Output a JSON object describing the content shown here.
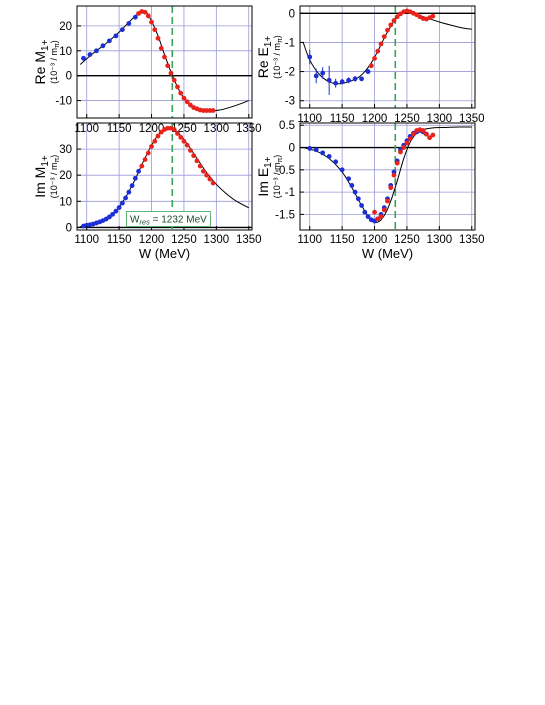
{
  "colors": {
    "blue": "#1c2ed6",
    "red": "#e8231b",
    "grid": "#9a9ad6",
    "dash": "#3aa35a",
    "curve": "#000000"
  },
  "chart_data": [
    {
      "id": "re_m1",
      "type": "scatter",
      "ylabel": "Re M",
      "ysub": "1+",
      "yunit": "(10⁻³ / m",
      "yunit_sub": "π",
      "yunit_close": ")",
      "xlabel": "",
      "xlim": [
        1085,
        1355
      ],
      "ylim": [
        -17,
        28
      ],
      "xticks": [
        1100,
        1150,
        1200,
        1250,
        1300,
        1350
      ],
      "yticks": [
        -10,
        0,
        10,
        20
      ],
      "zero_line": true,
      "vline": 1232,
      "series": [
        {
          "color": "blue",
          "x": [
            1095,
            1105,
            1115,
            1125,
            1135,
            1145,
            1155,
            1165,
            1175
          ],
          "y": [
            7,
            8.5,
            10,
            12,
            14,
            16,
            18.5,
            21,
            23.5
          ]
        },
        {
          "color": "red",
          "x": [
            1180,
            1185,
            1190,
            1195,
            1200,
            1205,
            1210,
            1215,
            1220,
            1225,
            1230,
            1235,
            1240,
            1245,
            1250,
            1255,
            1260,
            1265,
            1270,
            1275,
            1280,
            1285,
            1290,
            1295
          ],
          "y": [
            25,
            25.8,
            25.5,
            24,
            21.5,
            18.5,
            15,
            11,
            7.5,
            4,
            1,
            -1.8,
            -4.5,
            -7,
            -9,
            -10.5,
            -11.8,
            -12.8,
            -13.3,
            -13.8,
            -14,
            -14,
            -14,
            -14
          ]
        }
      ],
      "curve": {
        "x": [
          1090,
          1110,
          1130,
          1150,
          1165,
          1175,
          1185,
          1192,
          1200,
          1210,
          1220,
          1230,
          1240,
          1250,
          1262,
          1275,
          1290,
          1305,
          1320,
          1335,
          1350
        ],
        "y": [
          4.5,
          9,
          13,
          17.5,
          21.5,
          24,
          25.8,
          25.5,
          22,
          16,
          8.5,
          1.5,
          -4.5,
          -9,
          -12,
          -13.6,
          -14.2,
          -13.8,
          -12.8,
          -11.5,
          -10
        ]
      }
    },
    {
      "id": "re_e1",
      "type": "scatter",
      "ylabel": "Re E",
      "ysub": "1+",
      "yunit": "(10⁻³ / m",
      "yunit_sub": "π",
      "yunit_close": ")",
      "xlabel": "",
      "xlim": [
        1085,
        1355
      ],
      "ylim": [
        -3.25,
        0.25
      ],
      "xticks": [
        1100,
        1150,
        1200,
        1250,
        1300,
        1350
      ],
      "yticks": [
        -3,
        -2,
        -1,
        0
      ],
      "zero_line": true,
      "vline": 1232,
      "series": [
        {
          "color": "blue",
          "x": [
            1100,
            1110,
            1120,
            1130,
            1140,
            1150,
            1160,
            1170,
            1180,
            1190
          ],
          "y": [
            -1.5,
            -2.15,
            -2.05,
            -2.3,
            -2.4,
            -2.35,
            -2.3,
            -2.25,
            -2.25,
            -2.0
          ],
          "err": [
            0.25,
            0.25,
            0.2,
            0.5,
            0.15,
            0.1,
            0.1,
            0.1,
            0.08,
            0.08
          ]
        },
        {
          "color": "red",
          "x": [
            1195,
            1200,
            1205,
            1210,
            1215,
            1220,
            1225,
            1230,
            1235,
            1240,
            1245,
            1250,
            1255,
            1260,
            1265,
            1270,
            1275,
            1280,
            1285,
            1290
          ],
          "y": [
            -1.8,
            -1.55,
            -1.3,
            -1.05,
            -0.8,
            -0.58,
            -0.4,
            -0.25,
            -0.12,
            -0.02,
            0.05,
            0.08,
            0.05,
            0.0,
            -0.05,
            -0.12,
            -0.18,
            -0.2,
            -0.15,
            -0.1
          ]
        }
      ],
      "curve": {
        "x": [
          1090,
          1100,
          1115,
          1130,
          1145,
          1160,
          1175,
          1185,
          1195,
          1205,
          1215,
          1225,
          1235,
          1245,
          1255,
          1265,
          1280,
          1300,
          1320,
          1335,
          1350
        ],
        "y": [
          -1.0,
          -1.6,
          -2.1,
          -2.35,
          -2.42,
          -2.35,
          -2.2,
          -2.0,
          -1.7,
          -1.3,
          -0.85,
          -0.45,
          -0.12,
          0.05,
          0.05,
          -0.05,
          -0.15,
          -0.3,
          -0.42,
          -0.5,
          -0.55
        ]
      }
    },
    {
      "id": "im_m1",
      "type": "scatter",
      "ylabel": "Im M",
      "ysub": "1+",
      "yunit": "(10⁻³ / m",
      "yunit_sub": "π",
      "yunit_close": ")",
      "xlabel": "W (MeV)",
      "xlim": [
        1085,
        1355
      ],
      "ylim": [
        -1,
        40
      ],
      "xticks": [
        1100,
        1150,
        1200,
        1250,
        1300,
        1350
      ],
      "yticks": [
        0,
        10,
        20,
        30
      ],
      "zero_line": true,
      "vline": 1232,
      "annotation": {
        "prefix": "W",
        "sub": "res",
        "suffix": " = 1232 MeV"
      },
      "series": [
        {
          "color": "blue",
          "x": [
            1095,
            1100,
            1105,
            1110,
            1115,
            1120,
            1125,
            1130,
            1135,
            1140,
            1145,
            1150,
            1155,
            1160,
            1165,
            1170,
            1175,
            1180
          ],
          "y": [
            0.5,
            0.8,
            1,
            1.3,
            1.7,
            2.1,
            2.6,
            3.2,
            4,
            5,
            6.2,
            7.6,
            9.3,
            11.3,
            13.5,
            16,
            18.8,
            21.5
          ]
        },
        {
          "color": "red",
          "x": [
            1185,
            1190,
            1195,
            1200,
            1205,
            1210,
            1215,
            1220,
            1225,
            1230,
            1235,
            1240,
            1245,
            1250,
            1255,
            1260,
            1265,
            1270,
            1275,
            1280,
            1285,
            1290,
            1295
          ],
          "y": [
            23.5,
            26,
            28.5,
            31,
            33,
            35,
            36.5,
            37.5,
            38,
            38,
            37.5,
            36,
            34.5,
            33,
            31.5,
            29.5,
            27.5,
            25.5,
            23.5,
            21.5,
            20,
            18.5,
            17
          ]
        }
      ],
      "curve": {
        "x": [
          1090,
          1110,
          1130,
          1150,
          1170,
          1185,
          1200,
          1212,
          1222,
          1230,
          1240,
          1255,
          1270,
          1285,
          1300,
          1315,
          1330,
          1350
        ],
        "y": [
          0.3,
          1.2,
          3.3,
          7.8,
          16,
          24,
          31.5,
          36,
          37.8,
          38,
          36.5,
          32,
          26.5,
          21,
          16.5,
          13,
          10.2,
          7.5
        ]
      }
    },
    {
      "id": "im_e1",
      "type": "scatter",
      "ylabel": "Im E",
      "ysub": "1+",
      "yunit": "(10⁻³ / m",
      "yunit_sub": "π",
      "yunit_close": ")",
      "xlabel": "W (MeV)",
      "xlim": [
        1085,
        1355
      ],
      "ylim": [
        -1.85,
        0.55
      ],
      "xticks": [
        1100,
        1150,
        1200,
        1250,
        1300,
        1350
      ],
      "yticks": [
        -1.5,
        -1,
        -0.5,
        0,
        0.5
      ],
      "ytick_labels": [
        "-1.5",
        "-1",
        "-0.5",
        "0",
        "0.5"
      ],
      "zero_line": true,
      "vline": 1232,
      "series": [
        {
          "color": "blue",
          "x": [
            1100,
            1110,
            1120,
            1130,
            1140,
            1150,
            1160,
            1165,
            1170,
            1175,
            1180,
            1185,
            1190,
            1195,
            1200,
            1205,
            1210,
            1215,
            1220,
            1225,
            1230,
            1235,
            1240,
            1245,
            1250,
            1255,
            1260,
            1265,
            1270,
            1275,
            1280
          ],
          "y": [
            -0.02,
            -0.05,
            -0.12,
            -0.2,
            -0.32,
            -0.5,
            -0.7,
            -0.85,
            -1.0,
            -1.15,
            -1.3,
            -1.45,
            -1.55,
            -1.62,
            -1.65,
            -1.6,
            -1.5,
            -1.35,
            -1.15,
            -0.85,
            -0.55,
            -0.3,
            -0.05,
            0.05,
            0.15,
            0.25,
            0.32,
            0.35,
            0.38,
            0.35,
            0.3
          ]
        },
        {
          "color": "red",
          "x": [
            1200,
            1205,
            1210,
            1215,
            1220,
            1225,
            1230,
            1235,
            1240,
            1245,
            1250,
            1255,
            1260,
            1265,
            1270,
            1275,
            1280,
            1285,
            1290
          ],
          "y": [
            -1.45,
            -1.6,
            -1.55,
            -1.4,
            -1.2,
            -0.9,
            -0.62,
            -0.35,
            -0.1,
            0.0,
            0.1,
            0.2,
            0.3,
            0.38,
            0.4,
            0.38,
            0.3,
            0.22,
            0.28
          ]
        }
      ],
      "curve": {
        "x": [
          1090,
          1110,
          1130,
          1150,
          1165,
          1180,
          1192,
          1200,
          1208,
          1216,
          1225,
          1235,
          1245,
          1255,
          1265,
          1275,
          1290,
          1310,
          1330,
          1350
        ],
        "y": [
          0,
          -0.08,
          -0.25,
          -0.55,
          -0.9,
          -1.3,
          -1.58,
          -1.68,
          -1.65,
          -1.5,
          -1.2,
          -0.75,
          -0.25,
          0.12,
          0.32,
          0.4,
          0.44,
          0.45,
          0.46,
          0.46
        ]
      }
    }
  ]
}
